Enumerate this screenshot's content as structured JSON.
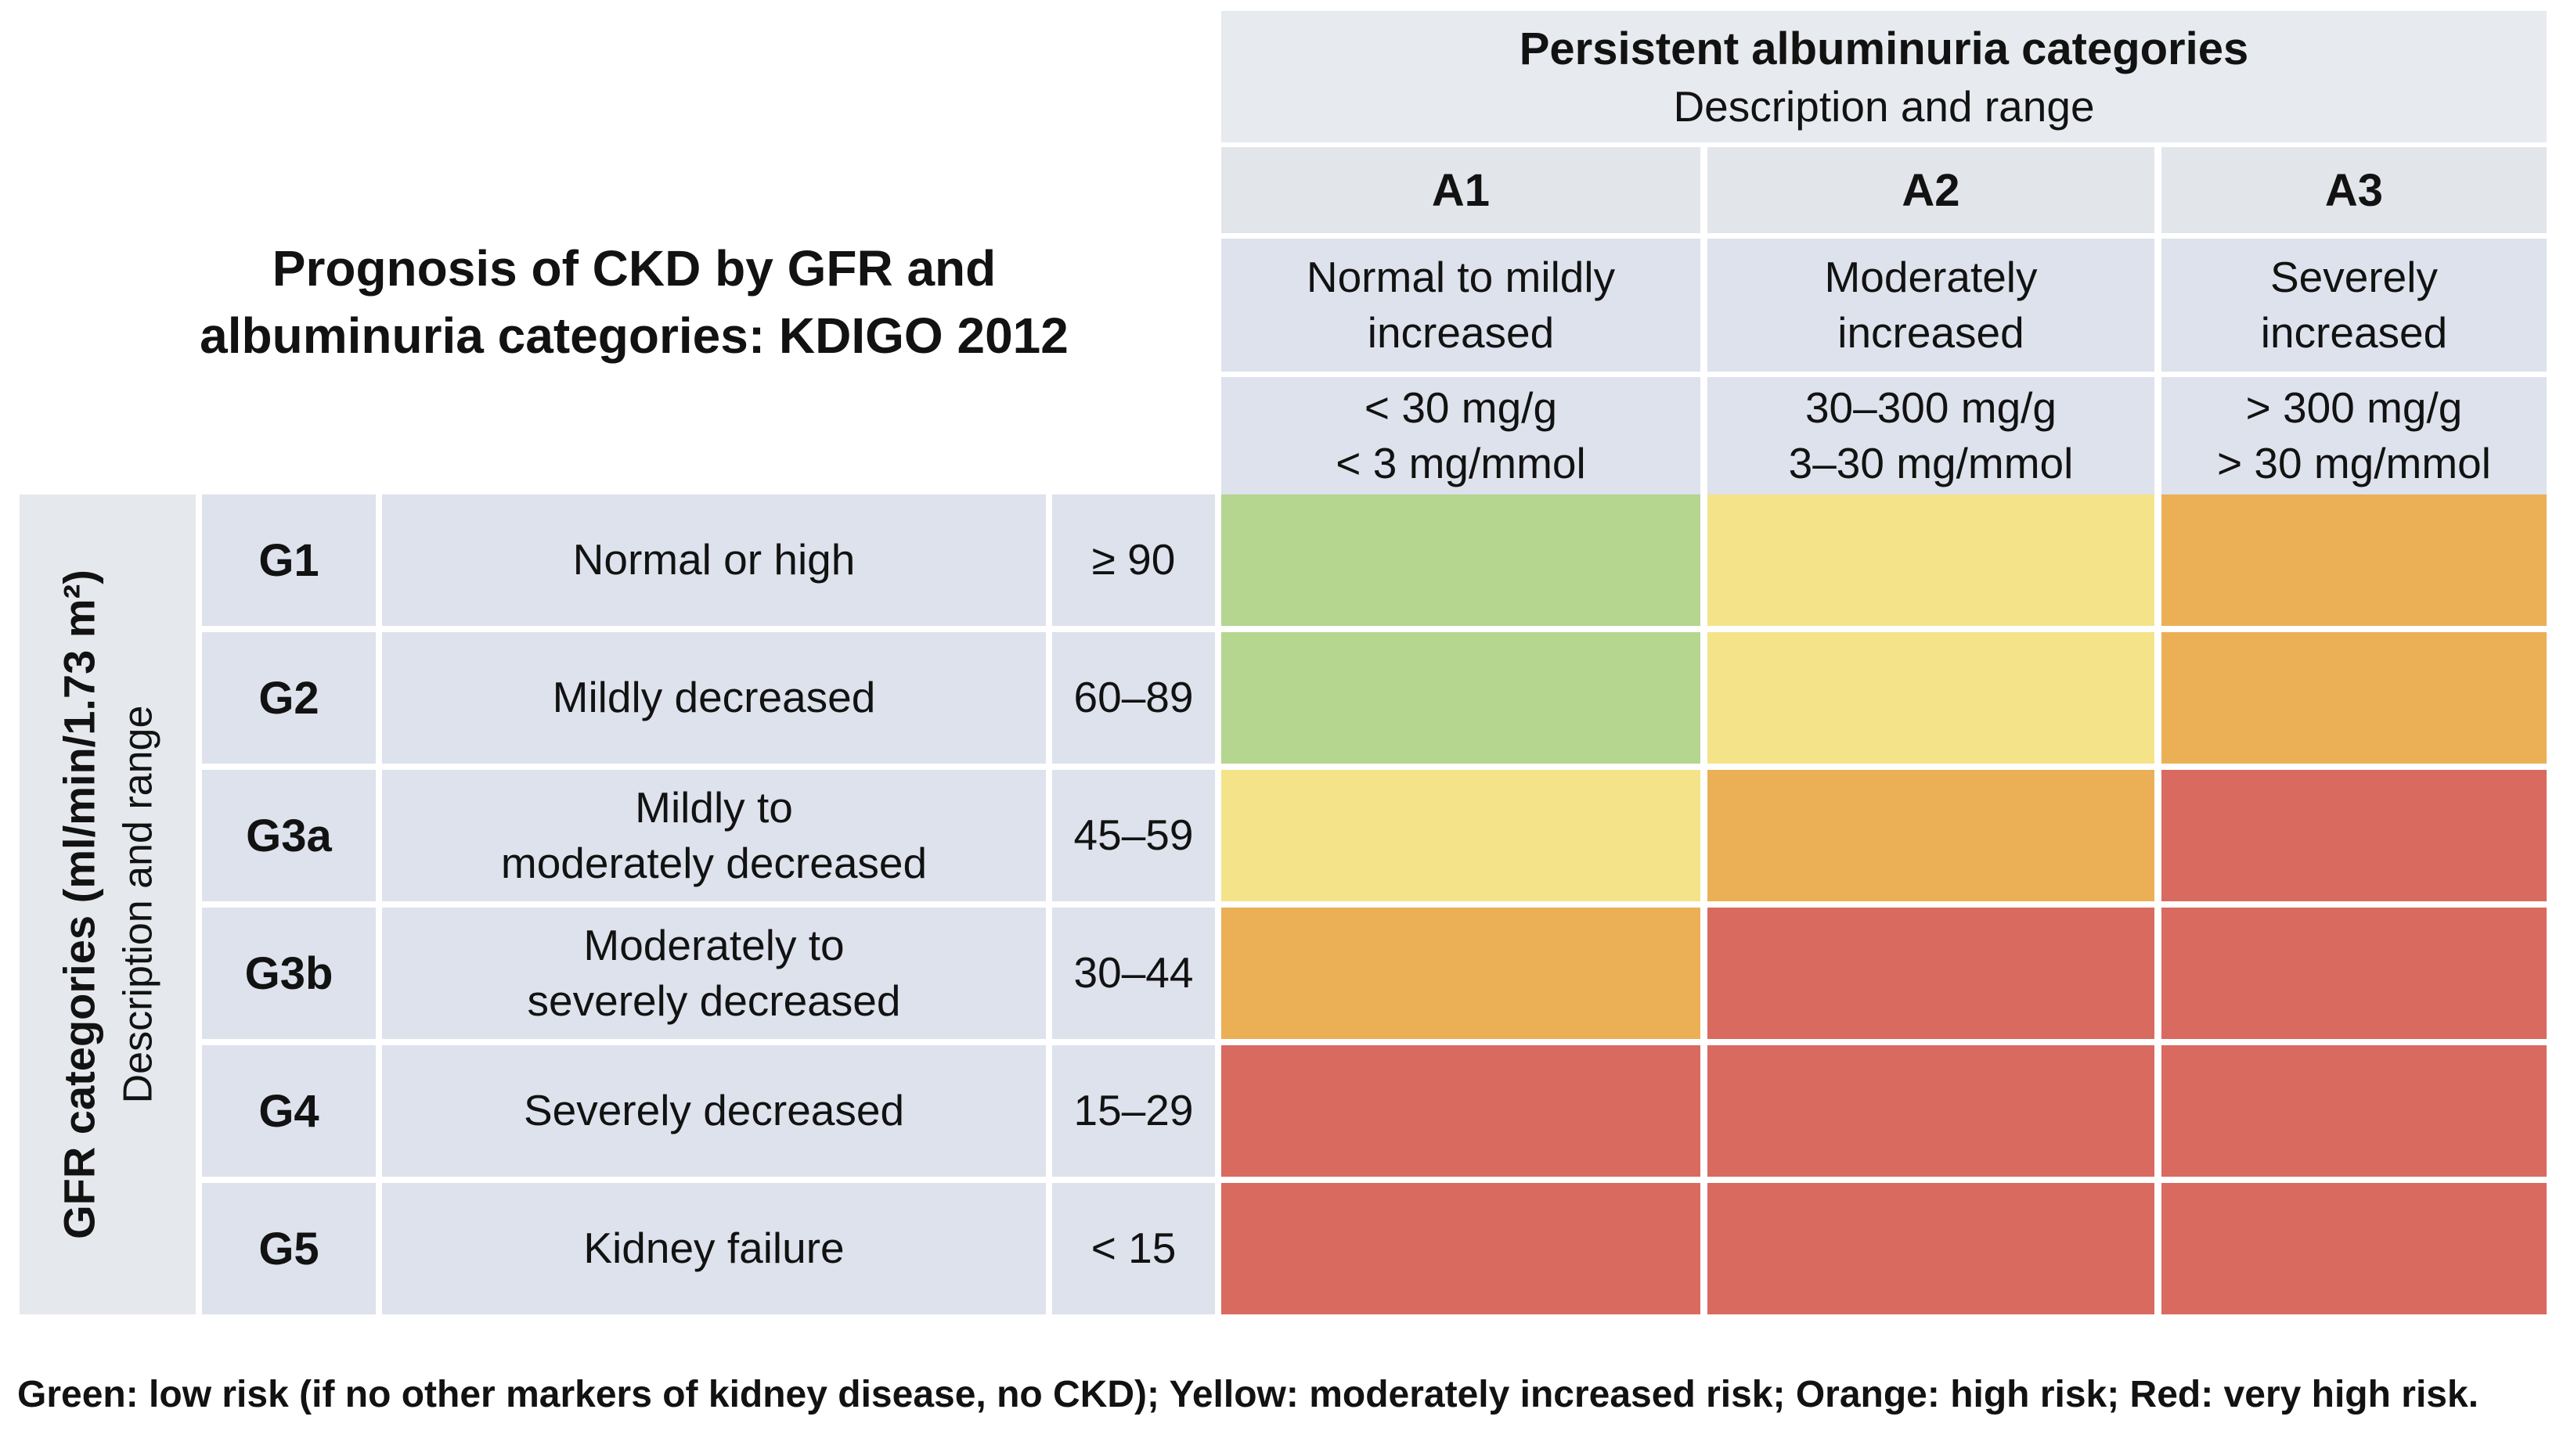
{
  "figure_title": "Prognosis of CKD by GFR and\nalbuminuria categories: KDIGO 2012",
  "albuminuria_header": {
    "title": "Persistent albuminuria categories",
    "subtitle": "Description and range",
    "columns": [
      {
        "code": "A1",
        "description": "Normal to mildly\nincreased",
        "range": "< 30 mg/g\n< 3 mg/mmol"
      },
      {
        "code": "A2",
        "description": "Moderately\nincreased",
        "range": "30–300 mg/g\n3–30 mg/mmol"
      },
      {
        "code": "A3",
        "description": "Severely\nincreased",
        "range": "> 300 mg/g\n> 30 mg/mmol"
      }
    ]
  },
  "gfr_axis": {
    "label_bold": "GFR categories (ml/min/1.73 m²)",
    "label_regular": "Description and range"
  },
  "gfr_rows": [
    {
      "code": "G1",
      "description": "Normal or high",
      "range": "≥ 90",
      "risks": [
        "green",
        "yellow",
        "orange"
      ]
    },
    {
      "code": "G2",
      "description": "Mildly decreased",
      "range": "60–89",
      "risks": [
        "green",
        "yellow",
        "orange"
      ]
    },
    {
      "code": "G3a",
      "description": "Mildly to\nmoderately decreased",
      "range": "45–59",
      "risks": [
        "yellow",
        "orange",
        "red"
      ]
    },
    {
      "code": "G3b",
      "description": "Moderately to\nseverely decreased",
      "range": "30–44",
      "risks": [
        "orange",
        "red",
        "red"
      ]
    },
    {
      "code": "G4",
      "description": "Severely decreased",
      "range": "15–29",
      "risks": [
        "red",
        "red",
        "red"
      ]
    },
    {
      "code": "G5",
      "description": "Kidney failure",
      "range": "< 15",
      "risks": [
        "red",
        "red",
        "red"
      ]
    }
  ],
  "risk_colors": {
    "green": "#b5d68e",
    "yellow": "#f5e38a",
    "orange": "#ebb056",
    "red": "#d96a60"
  },
  "legend": "Green: low risk (if no other markers of kidney disease, no CKD); Yellow: moderately increased risk; Orange: high risk; Red: very high risk.",
  "chart_data": {
    "type": "heatmap",
    "title": "Prognosis of CKD by GFR and albuminuria categories: KDIGO 2012",
    "x_axis_label": "Persistent albuminuria categories (Description and range)",
    "y_axis_label": "GFR categories (ml/min/1.73 m²) (Description and range)",
    "columns": [
      {
        "code": "A1",
        "description": "Normal to mildly increased",
        "range": "< 30 mg/g, < 3 mg/mmol"
      },
      {
        "code": "A2",
        "description": "Moderately increased",
        "range": "30–300 mg/g, 3–30 mg/mmol"
      },
      {
        "code": "A3",
        "description": "Severely increased",
        "range": "> 300 mg/g, > 30 mg/mmol"
      }
    ],
    "rows": [
      {
        "code": "G1",
        "description": "Normal or high",
        "range": "≥ 90"
      },
      {
        "code": "G2",
        "description": "Mildly decreased",
        "range": "60–89"
      },
      {
        "code": "G3a",
        "description": "Mildly to moderately decreased",
        "range": "45–59"
      },
      {
        "code": "G3b",
        "description": "Moderately to severely decreased",
        "range": "30–44"
      },
      {
        "code": "G4",
        "description": "Severely decreased",
        "range": "15–29"
      },
      {
        "code": "G5",
        "description": "Kidney failure",
        "range": "< 15"
      }
    ],
    "values": [
      [
        "green",
        "yellow",
        "orange"
      ],
      [
        "green",
        "yellow",
        "orange"
      ],
      [
        "yellow",
        "orange",
        "red"
      ],
      [
        "orange",
        "red",
        "red"
      ],
      [
        "red",
        "red",
        "red"
      ],
      [
        "red",
        "red",
        "red"
      ]
    ],
    "value_meanings": {
      "green": "low risk (if no other markers of kidney disease, no CKD)",
      "yellow": "moderately increased risk",
      "orange": "high risk",
      "red": "very high risk"
    },
    "legend_position": "bottom",
    "grid": true
  }
}
